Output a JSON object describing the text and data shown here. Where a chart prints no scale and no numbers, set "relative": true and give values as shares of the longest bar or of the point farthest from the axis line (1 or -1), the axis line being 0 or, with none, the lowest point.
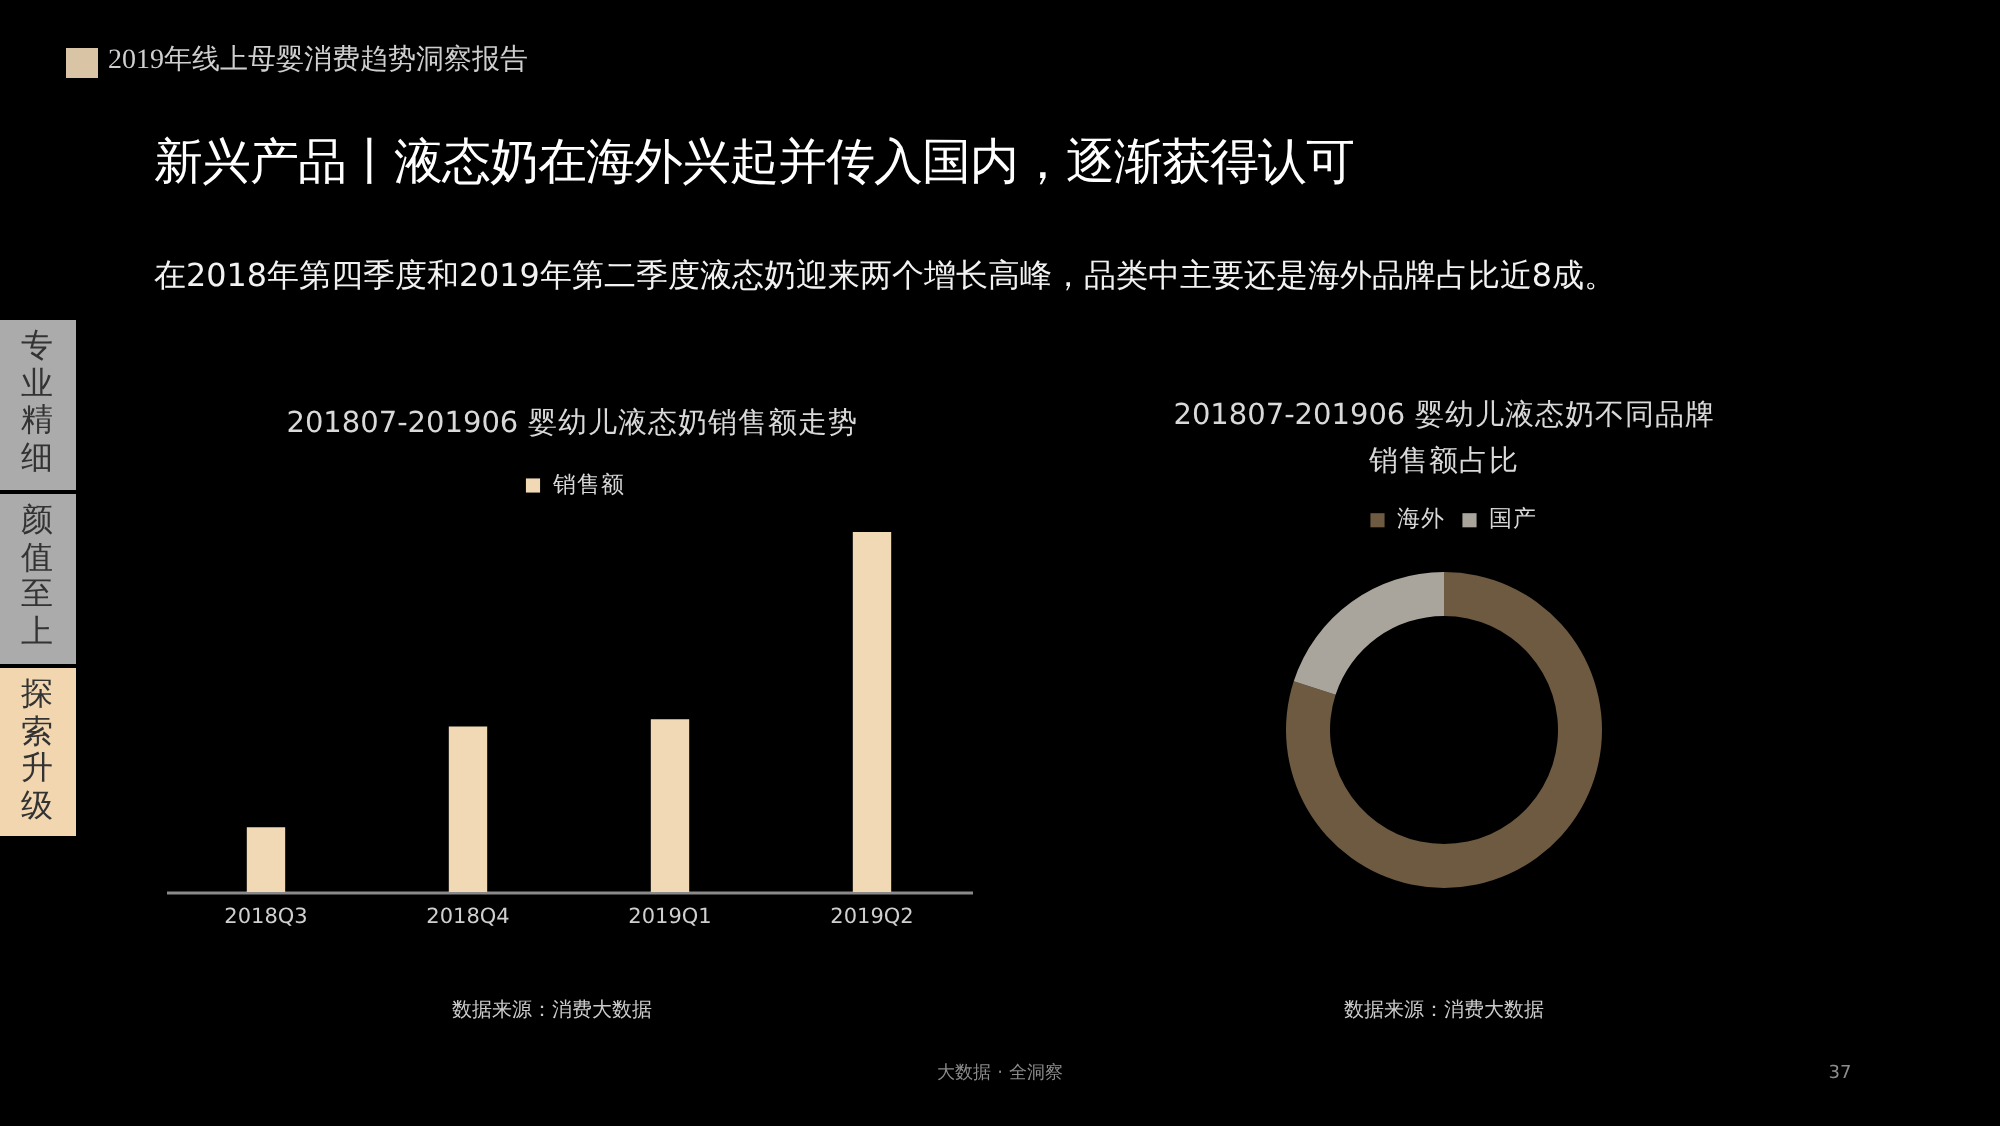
{
  "chart_data": [
    {
      "type": "other",
      "title": "新兴产品丨液态奶在海外兴起并传入国内，逐渐获得认可",
      "subtitle": "在2018年第四季度和2019年第二季度液态奶迎来两个增长高峰，品类中主要还是海外品牌占比近8成。",
      "annotations": [
        "2019年线上母婴消费趋势洞察报告",
        "专业精细",
        "颜值至上",
        "探索升级",
        "大数据 · 全洞察",
        "37"
      ]
    },
    {
      "type": "bar",
      "title": "201807-201906 婴幼儿液态奶销售额走势",
      "categories": [
        "2018Q3",
        "2018Q4",
        "2019Q1",
        "2019Q2"
      ],
      "series": [
        {
          "name": "销售额",
          "color": "#f2d9b6",
          "values": [
            0.18,
            0.46,
            0.48,
            1
          ]
        }
      ],
      "relative": true,
      "legend": "top",
      "annotations": [
        "数据来源：消费大数据"
      ]
    },
    {
      "type": "donut",
      "title": "201807-201906 婴幼儿液态奶不同品牌销售额占比",
      "categories": [
        "海外",
        "国产"
      ],
      "values": [
        80,
        20
      ],
      "colors": [
        "#6d5a40",
        "#aaa59c"
      ],
      "legend": "top",
      "annotations": [
        "数据来源：消费大数据"
      ]
    }
  ]
}
